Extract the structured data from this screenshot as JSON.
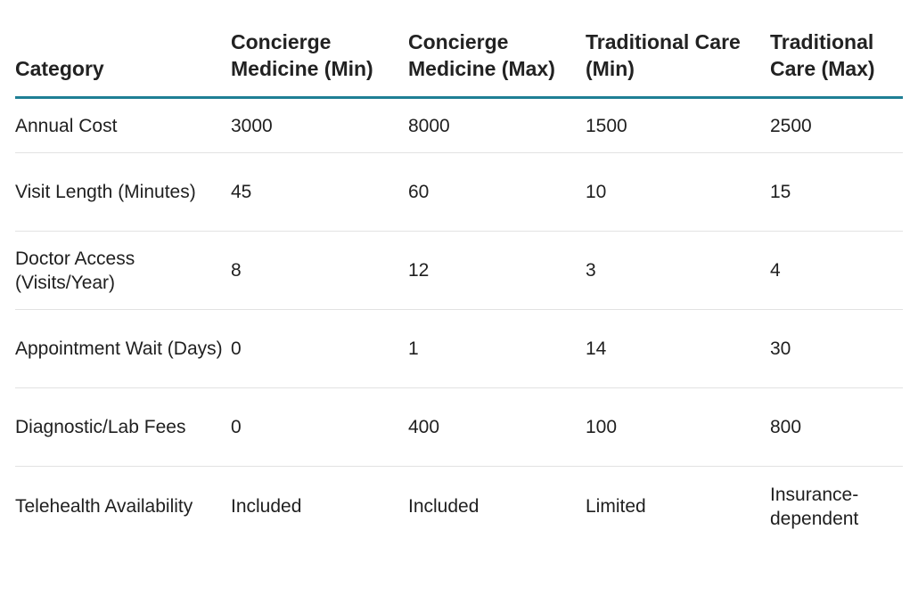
{
  "table": {
    "headers": [
      "Category",
      "Concierge Medicine (Min)",
      "Concierge Medicine (Max)",
      "Traditional Care (Min)",
      "Traditional Care (Max)"
    ],
    "rows": [
      [
        "Annual Cost",
        "3000",
        "8000",
        "1500",
        "2500"
      ],
      [
        "Visit Length (Minutes)",
        "45",
        "60",
        "10",
        "15"
      ],
      [
        "Doctor Access (Visits/Year)",
        "8",
        "12",
        "3",
        "4"
      ],
      [
        "Appointment Wait (Days)",
        "0",
        "1",
        "14",
        "30"
      ],
      [
        "Diagnostic/Lab Fees",
        "0",
        "400",
        "100",
        "800"
      ],
      [
        "Telehealth Availability",
        "Included",
        "Included",
        "Limited",
        "Insurance-dependent"
      ]
    ]
  },
  "colors": {
    "header_rule": "#1f7f95",
    "row_divider": "#e2e2e2",
    "text": "#1f1f1f"
  }
}
